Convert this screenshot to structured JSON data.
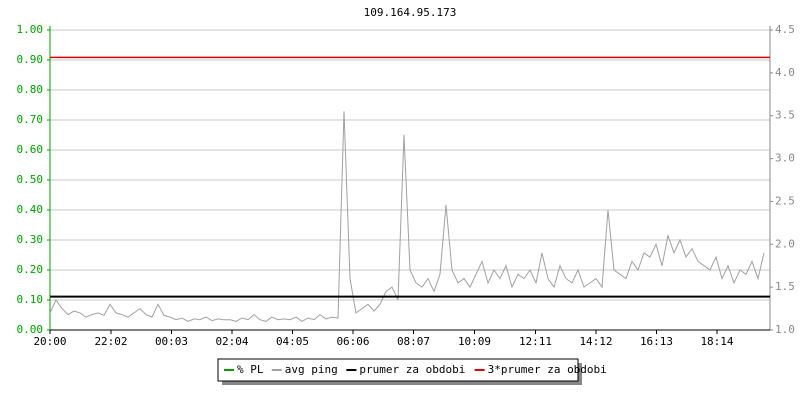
{
  "chart_data": {
    "type": "line",
    "title": "109.164.95.173",
    "xlim": [
      0,
      1440
    ],
    "xticks": [
      {
        "value": 0,
        "label": "20:00"
      },
      {
        "value": 122,
        "label": "22:02"
      },
      {
        "value": 243,
        "label": "00:03"
      },
      {
        "value": 364,
        "label": "02:04"
      },
      {
        "value": 485,
        "label": "04:05"
      },
      {
        "value": 606,
        "label": "06:06"
      },
      {
        "value": 727,
        "label": "08:07"
      },
      {
        "value": 849,
        "label": "10:09"
      },
      {
        "value": 971,
        "label": "12:11"
      },
      {
        "value": 1092,
        "label": "14:12"
      },
      {
        "value": 1213,
        "label": "16:13"
      },
      {
        "value": 1334,
        "label": "18:14"
      }
    ],
    "ylim": [
      0,
      1
    ],
    "yticks": [
      {
        "value": 0,
        "label": "0.00"
      },
      {
        "value": 0.1,
        "label": "0.10"
      },
      {
        "value": 0.2,
        "label": "0.20"
      },
      {
        "value": 0.3,
        "label": "0.30"
      },
      {
        "value": 0.4,
        "label": "0.40"
      },
      {
        "value": 0.5,
        "label": "0.50"
      },
      {
        "value": 0.6,
        "label": "0.60"
      },
      {
        "value": 0.7,
        "label": "0.70"
      },
      {
        "value": 0.8,
        "label": "0.80"
      },
      {
        "value": 0.9,
        "label": "0.90"
      },
      {
        "value": 1,
        "label": "1.00"
      }
    ],
    "y2lim": [
      1,
      4.5
    ],
    "y2ticks": [
      {
        "value": 1,
        "label": "1.0"
      },
      1.5,
      {
        "value": 2,
        "label": "2.0"
      },
      2.5,
      {
        "value": 3,
        "label": "3.0"
      },
      3.5,
      {
        "value": 4,
        "label": "4.0"
      },
      4.5
    ],
    "grid": true,
    "series": [
      {
        "name": "% PL",
        "color": "#00a000"
      },
      {
        "name": "avg ping",
        "color": "#a0a0a0",
        "axis": "y2",
        "x": [
          0,
          12,
          24,
          36,
          48,
          60,
          72,
          84,
          96,
          108,
          120,
          132,
          144,
          156,
          168,
          180,
          192,
          204,
          216,
          228,
          240,
          252,
          264,
          276,
          288,
          300,
          312,
          324,
          336,
          348,
          360,
          372,
          384,
          396,
          408,
          420,
          432,
          444,
          456,
          468,
          480,
          492,
          504,
          516,
          528,
          540,
          552,
          564,
          576,
          588,
          600,
          612,
          624,
          636,
          648,
          660,
          672,
          684,
          696,
          708,
          720,
          732,
          744,
          756,
          768,
          780,
          792,
          804,
          816,
          828,
          840,
          852,
          864,
          876,
          888,
          900,
          912,
          924,
          936,
          948,
          960,
          972,
          984,
          996,
          1008,
          1020,
          1032,
          1044,
          1056,
          1068,
          1080,
          1092,
          1104,
          1116,
          1128,
          1140,
          1152,
          1164,
          1176,
          1188,
          1200,
          1212,
          1224,
          1236,
          1248,
          1260,
          1272,
          1284,
          1296,
          1308,
          1320,
          1332,
          1344,
          1356,
          1368,
          1380,
          1392,
          1404,
          1416,
          1428
        ],
        "values": [
          1.2,
          1.35,
          1.25,
          1.18,
          1.22,
          1.2,
          1.15,
          1.18,
          1.2,
          1.17,
          1.3,
          1.2,
          1.18,
          1.15,
          1.2,
          1.25,
          1.18,
          1.15,
          1.3,
          1.17,
          1.15,
          1.12,
          1.14,
          1.1,
          1.13,
          1.12,
          1.15,
          1.11,
          1.13,
          1.12,
          1.12,
          1.1,
          1.14,
          1.12,
          1.18,
          1.12,
          1.1,
          1.15,
          1.12,
          1.13,
          1.12,
          1.15,
          1.1,
          1.14,
          1.12,
          1.18,
          1.13,
          1.15,
          1.14,
          3.55,
          1.6,
          1.2,
          1.25,
          1.3,
          1.22,
          1.3,
          1.45,
          1.5,
          1.35,
          3.28,
          1.7,
          1.55,
          1.5,
          1.6,
          1.45,
          1.65,
          2.46,
          1.7,
          1.55,
          1.6,
          1.5,
          1.65,
          1.8,
          1.55,
          1.7,
          1.6,
          1.75,
          1.5,
          1.65,
          1.6,
          1.7,
          1.55,
          1.9,
          1.6,
          1.5,
          1.75,
          1.6,
          1.55,
          1.7,
          1.5,
          1.55,
          1.6,
          1.5,
          2.4,
          1.7,
          1.65,
          1.6,
          1.8,
          1.7,
          1.9,
          1.85,
          2.0,
          1.75,
          2.1,
          1.9,
          2.05,
          1.85,
          1.95,
          1.8,
          1.75,
          1.7,
          1.85,
          1.6,
          1.75,
          1.55,
          1.7,
          1.65,
          1.8,
          1.6,
          1.9
        ]
      },
      {
        "name": "prumer za obdobi",
        "color": "#000000",
        "axis": "y2",
        "value": 1.39
      },
      {
        "name": "3*prumer za obdobi",
        "color": "#dd0000",
        "axis": "y2",
        "value": 4.18
      }
    ]
  }
}
